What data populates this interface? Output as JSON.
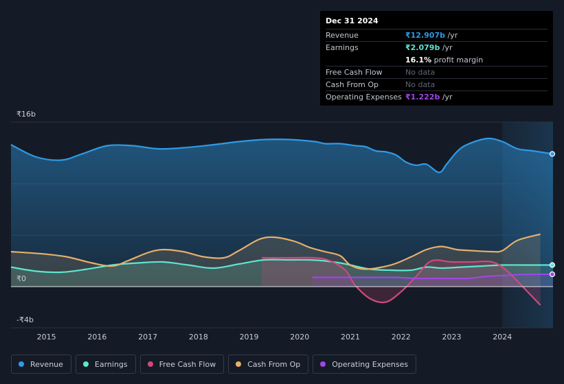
{
  "tooltip": {
    "date": "Dec 31 2024",
    "rows": [
      {
        "label": "Revenue",
        "value": "₹12.907b",
        "unit": " /yr",
        "color": "#2e9be6"
      },
      {
        "label": "Earnings",
        "value": "₹2.079b",
        "unit": " /yr",
        "color": "#5ee7d0"
      },
      {
        "label": "",
        "value": "16.1%",
        "unit": " profit margin",
        "color": "#ffffff"
      },
      {
        "label": "Free Cash Flow",
        "value": "No data",
        "unit": "",
        "color": "#5f6672"
      },
      {
        "label": "Cash From Op",
        "value": "No data",
        "unit": "",
        "color": "#5f6672"
      },
      {
        "label": "Operating Expenses",
        "value": "₹1.222b",
        "unit": " /yr",
        "color": "#9f46e8"
      }
    ]
  },
  "legend": [
    {
      "label": "Revenue",
      "color": "#2e9be6"
    },
    {
      "label": "Earnings",
      "color": "#5ee7d0"
    },
    {
      "label": "Free Cash Flow",
      "color": "#cf4a7c"
    },
    {
      "label": "Cash From Op",
      "color": "#e8b06b"
    },
    {
      "label": "Operating Expenses",
      "color": "#9f46e8"
    }
  ],
  "chart_data": {
    "type": "area",
    "ylim": [
      -4,
      16
    ],
    "y_tick_labels": [
      {
        "value": 16,
        "label": "₹16b"
      },
      {
        "value": 0,
        "label": "₹0"
      },
      {
        "value": -4,
        "label": "-₹4b"
      }
    ],
    "x_ticks": [
      2015,
      2016,
      2017,
      2018,
      2019,
      2020,
      2021,
      2022,
      2023,
      2024
    ],
    "xlim": [
      2014.3,
      2025.0
    ],
    "highlight_from": 2024.0,
    "series": [
      {
        "name": "Revenue",
        "color": "#2e9be6",
        "points": [
          [
            2014.3,
            13.8
          ],
          [
            2014.8,
            12.6
          ],
          [
            2015.3,
            12.3
          ],
          [
            2015.7,
            12.9
          ],
          [
            2016.2,
            13.7
          ],
          [
            2016.7,
            13.7
          ],
          [
            2017.2,
            13.4
          ],
          [
            2017.7,
            13.5
          ],
          [
            2018.3,
            13.8
          ],
          [
            2018.8,
            14.1
          ],
          [
            2019.3,
            14.3
          ],
          [
            2019.8,
            14.3
          ],
          [
            2020.3,
            14.1
          ],
          [
            2020.5,
            13.9
          ],
          [
            2020.8,
            13.9
          ],
          [
            2021.1,
            13.7
          ],
          [
            2021.3,
            13.6
          ],
          [
            2021.5,
            13.2
          ],
          [
            2021.7,
            13.1
          ],
          [
            2021.9,
            12.8
          ],
          [
            2022.1,
            12.1
          ],
          [
            2022.3,
            11.8
          ],
          [
            2022.5,
            11.9
          ],
          [
            2022.75,
            11.1
          ],
          [
            2022.9,
            11.9
          ],
          [
            2023.1,
            13.1
          ],
          [
            2023.3,
            13.8
          ],
          [
            2023.7,
            14.4
          ],
          [
            2024.0,
            14.1
          ],
          [
            2024.3,
            13.4
          ],
          [
            2024.6,
            13.2
          ],
          [
            2025.0,
            12.9
          ]
        ]
      },
      {
        "name": "Earnings",
        "color": "#5ee7d0",
        "points": [
          [
            2014.3,
            1.9
          ],
          [
            2014.8,
            1.5
          ],
          [
            2015.3,
            1.4
          ],
          [
            2015.8,
            1.7
          ],
          [
            2016.3,
            2.1
          ],
          [
            2016.8,
            2.3
          ],
          [
            2017.3,
            2.4
          ],
          [
            2017.8,
            2.1
          ],
          [
            2018.3,
            1.8
          ],
          [
            2018.8,
            2.2
          ],
          [
            2019.3,
            2.6
          ],
          [
            2019.8,
            2.6
          ],
          [
            2020.2,
            2.6
          ],
          [
            2020.5,
            2.5
          ],
          [
            2020.8,
            2.3
          ],
          [
            2021.0,
            2.1
          ],
          [
            2021.4,
            1.7
          ],
          [
            2021.8,
            1.6
          ],
          [
            2022.2,
            1.6
          ],
          [
            2022.5,
            1.9
          ],
          [
            2022.8,
            1.8
          ],
          [
            2023.2,
            1.9
          ],
          [
            2023.6,
            2.0
          ],
          [
            2024.0,
            2.1
          ],
          [
            2024.5,
            2.1
          ],
          [
            2025.0,
            2.1
          ]
        ]
      },
      {
        "name": "Cash From Op",
        "color": "#e8b06b",
        "points": [
          [
            2014.3,
            3.4
          ],
          [
            2014.9,
            3.2
          ],
          [
            2015.4,
            2.9
          ],
          [
            2015.9,
            2.3
          ],
          [
            2016.3,
            2.0
          ],
          [
            2016.6,
            2.5
          ],
          [
            2017.0,
            3.3
          ],
          [
            2017.3,
            3.6
          ],
          [
            2017.7,
            3.4
          ],
          [
            2018.1,
            2.9
          ],
          [
            2018.5,
            2.8
          ],
          [
            2018.8,
            3.5
          ],
          [
            2019.2,
            4.6
          ],
          [
            2019.5,
            4.8
          ],
          [
            2019.9,
            4.4
          ],
          [
            2020.2,
            3.8
          ],
          [
            2020.5,
            3.4
          ],
          [
            2020.8,
            3.0
          ],
          [
            2021.0,
            2.1
          ],
          [
            2021.3,
            1.7
          ],
          [
            2021.8,
            2.1
          ],
          [
            2022.2,
            2.9
          ],
          [
            2022.5,
            3.6
          ],
          [
            2022.8,
            3.9
          ],
          [
            2023.1,
            3.6
          ],
          [
            2023.4,
            3.5
          ],
          [
            2023.8,
            3.4
          ],
          [
            2024.0,
            3.5
          ],
          [
            2024.3,
            4.5
          ],
          [
            2024.75,
            5.1
          ]
        ]
      },
      {
        "name": "Free Cash Flow",
        "color": "#cf4a7c",
        "points": [
          [
            2019.25,
            2.8
          ],
          [
            2019.8,
            2.8
          ],
          [
            2020.3,
            2.8
          ],
          [
            2020.6,
            2.5
          ],
          [
            2020.9,
            1.6
          ],
          [
            2021.1,
            0.1
          ],
          [
            2021.4,
            -1.2
          ],
          [
            2021.7,
            -1.5
          ],
          [
            2022.0,
            -0.5
          ],
          [
            2022.3,
            1.0
          ],
          [
            2022.6,
            2.5
          ],
          [
            2023.0,
            2.4
          ],
          [
            2023.4,
            2.4
          ],
          [
            2023.8,
            2.4
          ],
          [
            2024.1,
            1.5
          ],
          [
            2024.4,
            0.0
          ],
          [
            2024.75,
            -1.8
          ]
        ]
      },
      {
        "name": "Operating Expenses",
        "color": "#9f46e8",
        "points": [
          [
            2020.25,
            0.9
          ],
          [
            2020.8,
            0.9
          ],
          [
            2021.4,
            0.9
          ],
          [
            2021.9,
            0.9
          ],
          [
            2022.3,
            0.8
          ],
          [
            2022.8,
            0.8
          ],
          [
            2023.3,
            0.8
          ],
          [
            2023.7,
            1.0
          ],
          [
            2024.1,
            1.1
          ],
          [
            2024.5,
            1.2
          ],
          [
            2025.0,
            1.2
          ]
        ]
      }
    ]
  }
}
